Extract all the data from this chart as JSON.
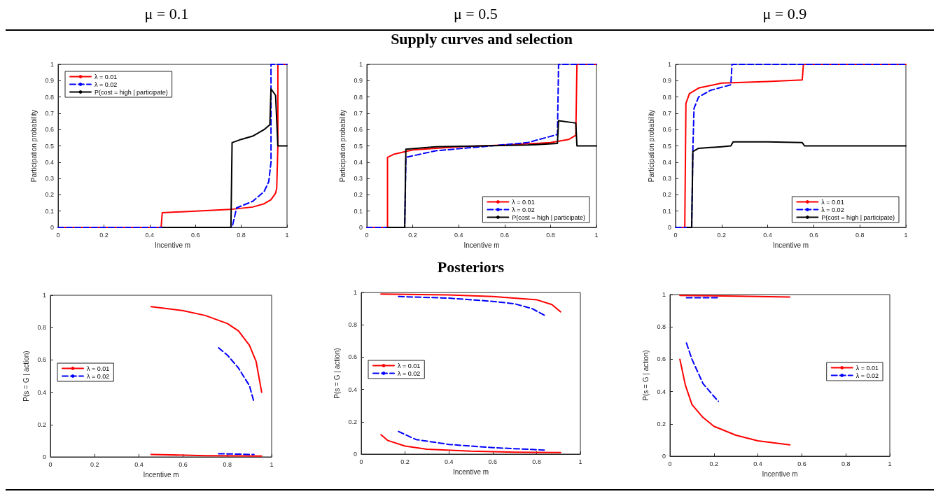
{
  "chart_data": [
    {
      "type": "line",
      "title": "μ = 0.1",
      "xlabel": "Incentive m",
      "ylabel": "Participation probability",
      "xlim": [
        0,
        1
      ],
      "ylim": [
        0,
        1
      ],
      "xticks": [
        0,
        0.2,
        0.4,
        0.6,
        0.8,
        1
      ],
      "yticks": [
        0,
        0.1,
        0.2,
        0.3,
        0.4,
        0.5,
        0.6,
        0.7,
        0.8,
        0.9,
        1
      ],
      "legend": "top left",
      "series": [
        {
          "name": "λ = 0.01",
          "color": "#ff0000",
          "line_style": "solid",
          "x": [
            0,
            0.45,
            0.455,
            0.6,
            0.75,
            0.85,
            0.9,
            0.93,
            0.95,
            0.955,
            0.96,
            0.96,
            1
          ],
          "values": [
            0,
            0,
            0.09,
            0.1,
            0.11,
            0.125,
            0.145,
            0.17,
            0.21,
            0.24,
            0.5,
            1,
            1
          ]
        },
        {
          "name": "λ = 0.02",
          "color": "#0000ff",
          "line_style": "dashed",
          "x": [
            0,
            0.76,
            0.78,
            0.85,
            0.9,
            0.92,
            0.93,
            0.93,
            1
          ],
          "values": [
            0,
            0,
            0.12,
            0.16,
            0.22,
            0.28,
            0.4,
            1,
            1
          ]
        },
        {
          "name": "P(cost = high | participate)",
          "color": "#000000",
          "line_style": "solid",
          "x": [
            0.455,
            0.755,
            0.76,
            0.8,
            0.85,
            0.9,
            0.925,
            0.93,
            0.95,
            0.96,
            1
          ],
          "values": [
            0,
            0,
            0.52,
            0.54,
            0.56,
            0.6,
            0.63,
            0.85,
            0.81,
            0.5,
            0.5
          ]
        }
      ]
    },
    {
      "type": "line",
      "title": "μ = 0.5",
      "annotations": [
        "Supply curves and selection"
      ],
      "xlabel": "Incentive m",
      "ylabel": "Participation probability",
      "xlim": [
        0,
        1
      ],
      "ylim": [
        0,
        1
      ],
      "xticks": [
        0,
        0.2,
        0.4,
        0.6,
        0.8,
        1
      ],
      "yticks": [
        0,
        0.1,
        0.2,
        0.3,
        0.4,
        0.5,
        0.6,
        0.7,
        0.8,
        0.9,
        1
      ],
      "legend": "bottom right",
      "series": [
        {
          "name": "λ = 0.01",
          "color": "#ff0000",
          "line_style": "solid",
          "x": [
            0,
            0.09,
            0.09,
            0.12,
            0.2,
            0.4,
            0.6,
            0.8,
            0.88,
            0.91,
            0.915,
            1
          ],
          "values": [
            0,
            0,
            0.43,
            0.45,
            0.475,
            0.495,
            0.505,
            0.52,
            0.54,
            0.565,
            1,
            1
          ]
        },
        {
          "name": "λ = 0.02",
          "color": "#0000ff",
          "line_style": "dashed",
          "x": [
            0,
            0.165,
            0.17,
            0.3,
            0.7,
            0.83,
            0.835,
            1
          ],
          "values": [
            0,
            0,
            0.43,
            0.47,
            0.52,
            0.57,
            1,
            1
          ]
        },
        {
          "name": "P(cost = high | participate)",
          "color": "#000000",
          "line_style": "solid",
          "x": [
            0.09,
            0.165,
            0.17,
            0.3,
            0.5,
            0.7,
            0.83,
            0.835,
            0.91,
            0.915,
            1
          ],
          "values": [
            0,
            0,
            0.48,
            0.495,
            0.5,
            0.505,
            0.515,
            0.655,
            0.64,
            0.5,
            0.5
          ]
        }
      ]
    },
    {
      "type": "line",
      "title": "μ = 0.9",
      "xlabel": "Incentive m",
      "ylabel": "Participation probability",
      "xlim": [
        0,
        1
      ],
      "ylim": [
        0,
        1
      ],
      "xticks": [
        0,
        0.2,
        0.4,
        0.6,
        0.8,
        1
      ],
      "yticks": [
        0,
        0.1,
        0.2,
        0.3,
        0.4,
        0.5,
        0.6,
        0.7,
        0.8,
        0.9,
        1
      ],
      "legend": "bottom right",
      "series": [
        {
          "name": "λ = 0.01",
          "color": "#ff0000",
          "line_style": "solid",
          "x": [
            0,
            0.04,
            0.045,
            0.06,
            0.1,
            0.2,
            0.4,
            0.55,
            0.555,
            1
          ],
          "values": [
            0,
            0,
            0.76,
            0.82,
            0.855,
            0.885,
            0.895,
            0.905,
            1,
            1
          ]
        },
        {
          "name": "λ = 0.02",
          "color": "#0000ff",
          "line_style": "dashed",
          "x": [
            0,
            0.07,
            0.075,
            0.08,
            0.1,
            0.15,
            0.24,
            0.245,
            1
          ],
          "values": [
            0,
            0,
            0.47,
            0.73,
            0.8,
            0.84,
            0.875,
            1,
            1
          ]
        },
        {
          "name": "P(cost = high | participate)",
          "color": "#000000",
          "line_style": "solid",
          "x": [
            0.05,
            0.07,
            0.075,
            0.1,
            0.2,
            0.24,
            0.25,
            0.4,
            0.55,
            0.56,
            1
          ],
          "values": [
            0,
            0,
            0.465,
            0.485,
            0.495,
            0.5,
            0.525,
            0.525,
            0.52,
            0.5,
            0.5
          ]
        }
      ]
    },
    {
      "type": "line",
      "xlabel": "Incentive m",
      "ylabel": "P(s = G | action)",
      "xlim": [
        0,
        1
      ],
      "ylim": [
        0,
        1
      ],
      "xticks": [
        0,
        0.2,
        0.4,
        0.6,
        0.8,
        1
      ],
      "yticks": [
        0,
        0.2,
        0.4,
        0.6,
        0.8,
        1
      ],
      "legend": "left",
      "series": [
        {
          "name": "λ = 0.01",
          "color": "#ff0000",
          "line_style": "solid",
          "x": [
            0.455,
            0.6,
            0.7,
            0.8,
            0.85,
            0.9,
            0.93,
            0.955
          ],
          "values": [
            0.93,
            0.905,
            0.875,
            0.825,
            0.78,
            0.69,
            0.59,
            0.4
          ]
        },
        {
          "name": "λ = 0.02",
          "color": "#0000ff",
          "line_style": "dashed",
          "x": [
            0.76,
            0.8,
            0.85,
            0.9,
            0.92
          ],
          "values": [
            0.675,
            0.63,
            0.55,
            0.44,
            0.34
          ]
        },
        {
          "color": "#ff0000",
          "line_style": "solid",
          "x": [
            0.455,
            0.7,
            0.955
          ],
          "values": [
            0.015,
            0.008,
            0.005
          ]
        },
        {
          "color": "#0000ff",
          "line_style": "dashed",
          "x": [
            0.76,
            0.92
          ],
          "values": [
            0.02,
            0.015
          ]
        }
      ]
    },
    {
      "type": "line",
      "annotations": [
        "Posteriors"
      ],
      "xlabel": "Incentive m",
      "ylabel": "P(s = G | action)",
      "xlim": [
        0,
        1
      ],
      "ylim": [
        0,
        1
      ],
      "xticks": [
        0,
        0.2,
        0.4,
        0.6,
        0.8,
        1
      ],
      "yticks": [
        0,
        0.2,
        0.4,
        0.6,
        0.8,
        1
      ],
      "legend": "left",
      "series": [
        {
          "name": "λ = 0.01",
          "color": "#ff0000",
          "line_style": "solid",
          "x": [
            0.09,
            0.4,
            0.6,
            0.8,
            0.87,
            0.91
          ],
          "values": [
            0.99,
            0.985,
            0.975,
            0.955,
            0.925,
            0.88
          ]
        },
        {
          "name": "λ = 0.02",
          "color": "#0000ff",
          "line_style": "dashed",
          "x": [
            0.17,
            0.4,
            0.6,
            0.7,
            0.78,
            0.835
          ],
          "values": [
            0.975,
            0.965,
            0.945,
            0.93,
            0.9,
            0.86
          ]
        },
        {
          "color": "#ff0000",
          "line_style": "solid",
          "x": [
            0.09,
            0.12,
            0.2,
            0.3,
            0.5,
            0.7,
            0.91
          ],
          "values": [
            0.12,
            0.085,
            0.05,
            0.03,
            0.018,
            0.012,
            0.01
          ]
        },
        {
          "color": "#0000ff",
          "line_style": "dashed",
          "x": [
            0.17,
            0.25,
            0.4,
            0.6,
            0.835
          ],
          "values": [
            0.14,
            0.09,
            0.06,
            0.04,
            0.025
          ]
        }
      ]
    },
    {
      "type": "line",
      "xlabel": "Incentive m",
      "ylabel": "P(s = G | action)",
      "xlim": [
        0,
        1
      ],
      "ylim": [
        0,
        1
      ],
      "xticks": [
        0,
        0.2,
        0.4,
        0.6,
        0.8,
        1
      ],
      "yticks": [
        0,
        0.2,
        0.4,
        0.6,
        0.8,
        1
      ],
      "legend": "right",
      "series": [
        {
          "name": "λ = 0.01",
          "color": "#ff0000",
          "line_style": "solid",
          "x": [
            0.045,
            0.3,
            0.545
          ],
          "values": [
            0.995,
            0.99,
            0.985
          ]
        },
        {
          "name": "λ = 0.02",
          "color": "#0000ff",
          "line_style": "dashed",
          "x": [
            0.075,
            0.22
          ],
          "values": [
            0.98,
            0.98
          ]
        },
        {
          "color": "#ff0000",
          "line_style": "solid",
          "x": [
            0.045,
            0.07,
            0.1,
            0.15,
            0.2,
            0.3,
            0.4,
            0.545
          ],
          "values": [
            0.6,
            0.44,
            0.32,
            0.24,
            0.185,
            0.13,
            0.095,
            0.07
          ]
        },
        {
          "color": "#0000ff",
          "line_style": "dashed",
          "x": [
            0.075,
            0.1,
            0.15,
            0.2,
            0.22
          ],
          "values": [
            0.7,
            0.6,
            0.45,
            0.37,
            0.34
          ]
        }
      ]
    }
  ]
}
